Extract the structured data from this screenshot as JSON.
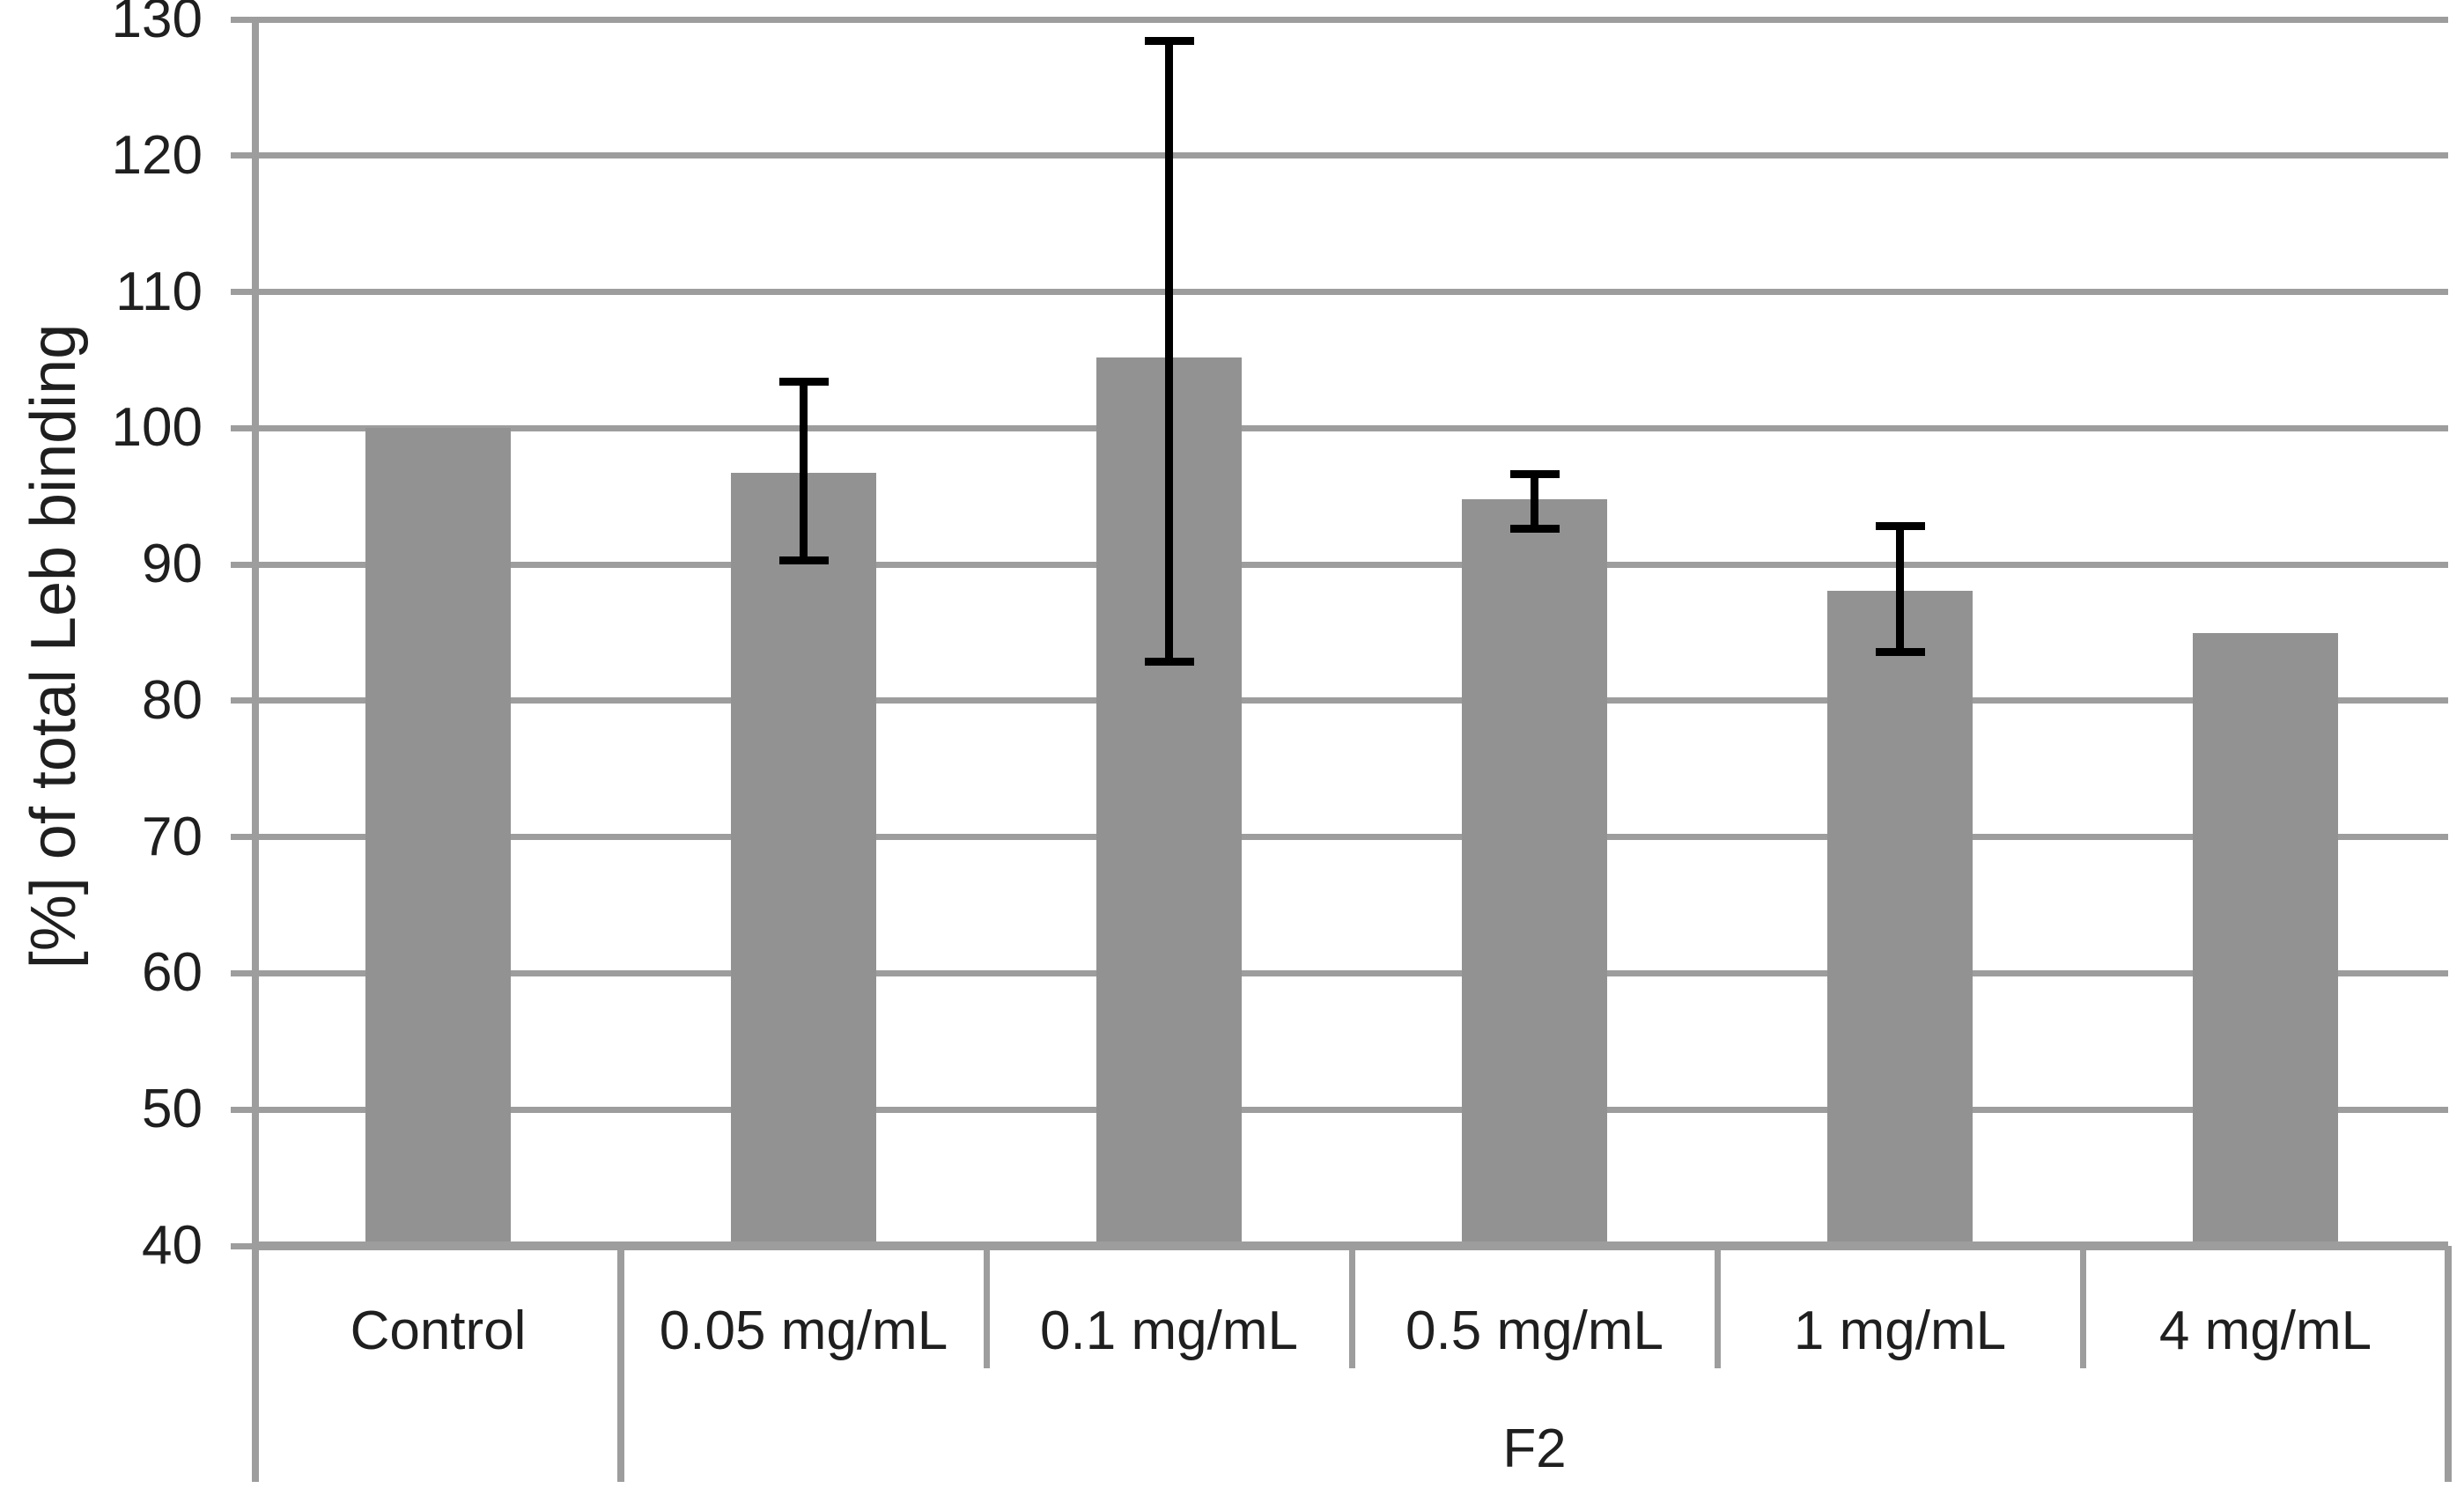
{
  "chart_data": {
    "type": "bar",
    "title": "",
    "ylabel": "[%] of total Leb binding",
    "xlabel": "",
    "categories": [
      "Control",
      "0.05 mg/mL",
      "0.1 mg/mL",
      "0.5 mg/mL",
      "1 mg/mL",
      "4 mg/mL"
    ],
    "values": [
      100,
      96.7,
      105.2,
      94.8,
      88.1,
      85
    ],
    "error_high": [
      null,
      103.4,
      128.4,
      96.6,
      92.8,
      null
    ],
    "error_low": [
      null,
      90.3,
      82.9,
      92.6,
      83.6,
      null
    ],
    "group_label": "F2",
    "group_span_categories": [
      "0.05 mg/mL",
      "0.1 mg/mL",
      "0.5 mg/mL",
      "1 mg/mL",
      "4 mg/mL"
    ],
    "ylim": [
      40,
      130
    ],
    "yticks": [
      40,
      50,
      60,
      70,
      80,
      90,
      100,
      110,
      120,
      130
    ],
    "grid": "horizontal",
    "legend_position": "none",
    "colors": {
      "bar": "#929292",
      "grid": "#9d9d9d",
      "axis": "#9d9d9d",
      "error": "#000000",
      "text": "#1f1f1f",
      "background": "#ffffff"
    }
  }
}
